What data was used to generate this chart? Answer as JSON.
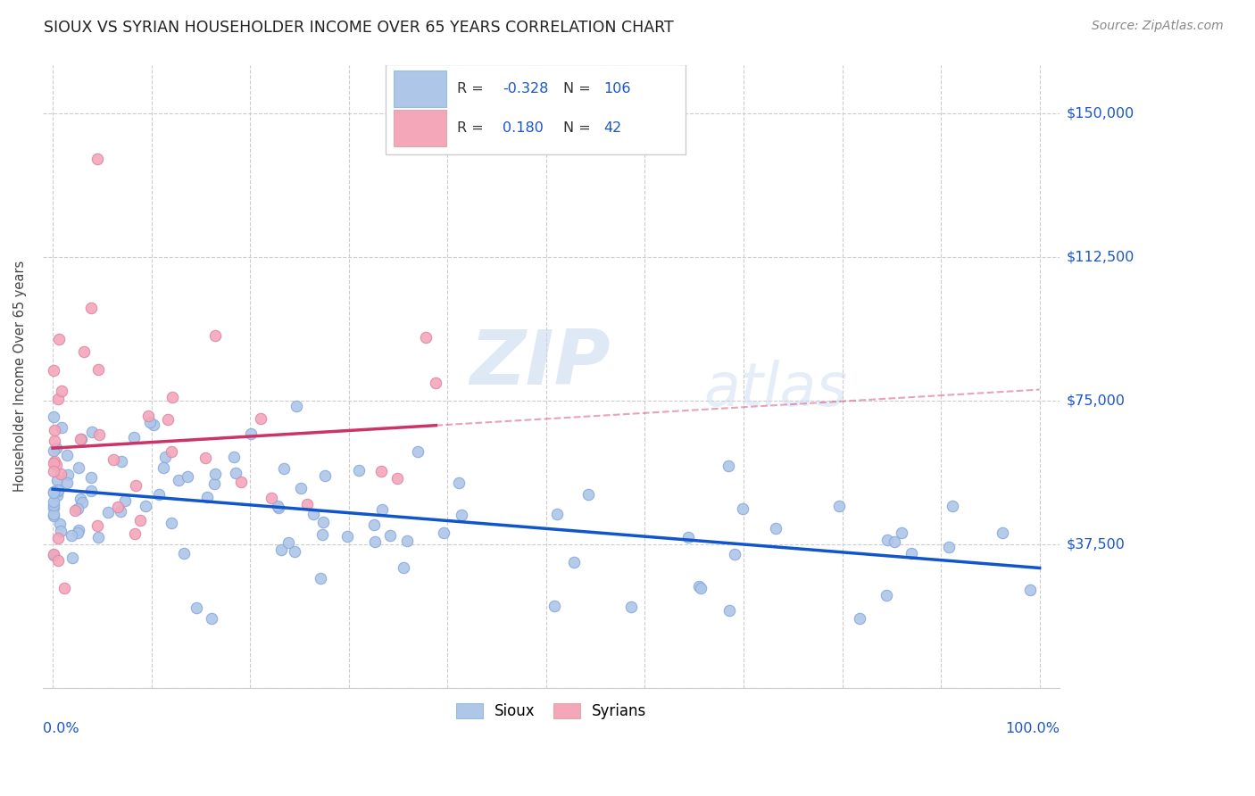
{
  "title": "SIOUX VS SYRIAN HOUSEHOLDER INCOME OVER 65 YEARS CORRELATION CHART",
  "source": "Source: ZipAtlas.com",
  "ylabel": "Householder Income Over 65 years",
  "watermark_zip": "ZIP",
  "watermark_atlas": "atlas",
  "legend_sioux_R": "-0.328",
  "legend_sioux_N": "106",
  "legend_syrian_R": "0.180",
  "legend_syrian_N": "42",
  "sioux_color": "#aec6e8",
  "sioux_line_color": "#1155cc",
  "syrian_color": "#f4a7b9",
  "syrian_line_color": "#cc3366",
  "background_color": "#ffffff",
  "grid_color": "#cccccc",
  "title_color": "#222222",
  "right_y_label_color": "#1a55cc",
  "ylabel_color": "#444444",
  "source_color": "#888888",
  "legend_text_color": "#1a55cc",
  "legend_label_color": "#333333",
  "ytick_vals": [
    0,
    37500,
    75000,
    112500,
    150000
  ],
  "ytick_labels": [
    "",
    "$37,500",
    "$75,000",
    "$112,500",
    "$150,000"
  ],
  "ylim": [
    0,
    162500
  ],
  "xlim": [
    -0.01,
    1.02
  ]
}
